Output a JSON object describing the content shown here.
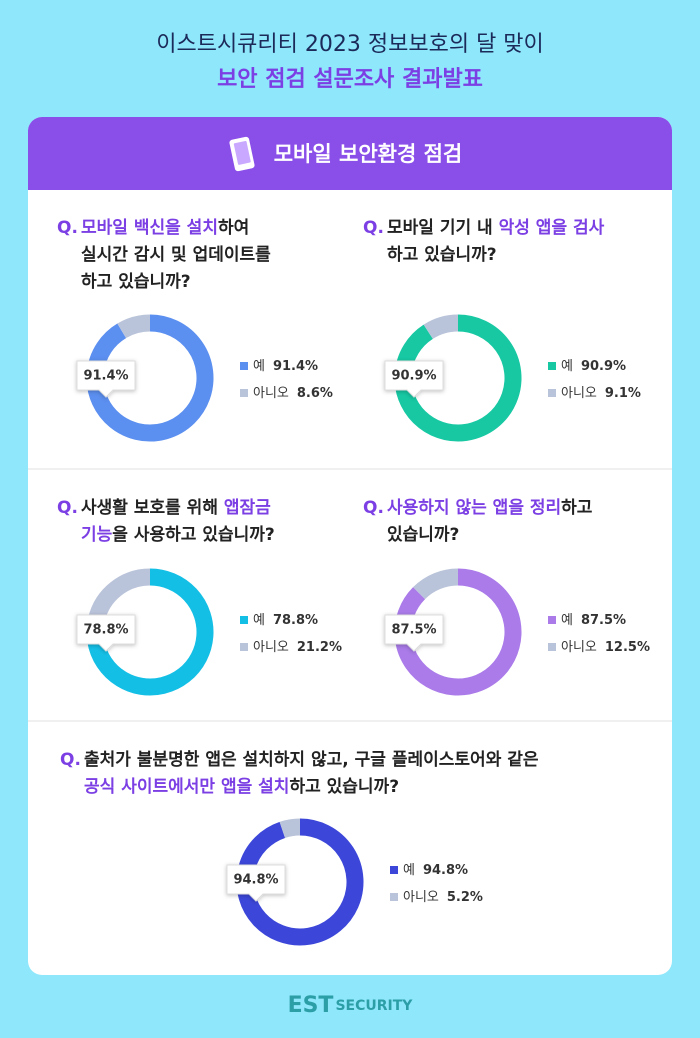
{
  "header": {
    "line1": "이스트시큐리티 2023 정보보호의 달 맞이",
    "line2": "보안 점검 설문조사 결과발표"
  },
  "section_title": "모바일 보안환경 점검",
  "footer": {
    "logo_main": "EST",
    "logo_sub": "SECURITY"
  },
  "chart_data": [
    {
      "type": "pie",
      "q_label": "Q.",
      "question_lines": [
        [
          {
            "text": "모바일 백신을 설치",
            "color": "#7b3fe4"
          },
          {
            "text": "하여",
            "color": "#222222"
          }
        ],
        [
          {
            "text": "실시간 감시 및 업데이트를",
            "color": "#222222"
          }
        ],
        [
          {
            "text": "하고 있습니까?",
            "color": "#222222"
          }
        ]
      ],
      "categories": [
        "예",
        "아니오"
      ],
      "values": [
        91.4,
        8.6
      ],
      "value_labels": [
        "91.4%",
        "8.6%"
      ],
      "colors": [
        "#5b8ff0",
        "#b9c3d9"
      ]
    },
    {
      "type": "pie",
      "q_label": "Q.",
      "question_lines": [
        [
          {
            "text": "모바일 기기 내 ",
            "color": "#222222"
          },
          {
            "text": "악성 앱을 검사",
            "color": "#7b3fe4"
          }
        ],
        [
          {
            "text": "하고 있습니까?",
            "color": "#222222"
          }
        ]
      ],
      "categories": [
        "예",
        "아니오"
      ],
      "values": [
        90.9,
        9.1
      ],
      "value_labels": [
        "90.9%",
        "9.1%"
      ],
      "colors": [
        "#17c8a3",
        "#b9c3d9"
      ]
    },
    {
      "type": "pie",
      "q_label": "Q.",
      "question_lines": [
        [
          {
            "text": "사생활 보호를 위해 ",
            "color": "#222222"
          },
          {
            "text": "앱잠금",
            "color": "#7b3fe4"
          }
        ],
        [
          {
            "text": "기능",
            "color": "#7b3fe4"
          },
          {
            "text": "을 사용하고 있습니까?",
            "color": "#222222"
          }
        ]
      ],
      "categories": [
        "예",
        "아니오"
      ],
      "values": [
        78.8,
        21.2
      ],
      "value_labels": [
        "78.8%",
        "21.2%"
      ],
      "colors": [
        "#14bfe6",
        "#b9c3d9"
      ]
    },
    {
      "type": "pie",
      "q_label": "Q.",
      "question_lines": [
        [
          {
            "text": "사용하지 않는 앱을 정리",
            "color": "#7b3fe4"
          },
          {
            "text": "하고",
            "color": "#222222"
          }
        ],
        [
          {
            "text": "있습니까?",
            "color": "#222222"
          }
        ]
      ],
      "categories": [
        "예",
        "아니오"
      ],
      "values": [
        87.5,
        12.5
      ],
      "value_labels": [
        "87.5%",
        "12.5%"
      ],
      "colors": [
        "#aa7be9",
        "#b9c3d9"
      ]
    },
    {
      "type": "pie",
      "q_label": "Q.",
      "question_lines": [
        [
          {
            "text": "출처가 불분명한 앱은 설치하지 않고, 구글 플레이스토어와 같은",
            "color": "#222222"
          }
        ],
        [
          {
            "text": "공식 사이트에서만 앱을 설치",
            "color": "#7b3fe4"
          },
          {
            "text": "하고 있습니까?",
            "color": "#222222"
          }
        ]
      ],
      "categories": [
        "예",
        "아니오"
      ],
      "values": [
        94.8,
        5.2
      ],
      "value_labels": [
        "94.8%",
        "5.2%"
      ],
      "colors": [
        "#3c47d9",
        "#b9c3d9"
      ]
    }
  ]
}
